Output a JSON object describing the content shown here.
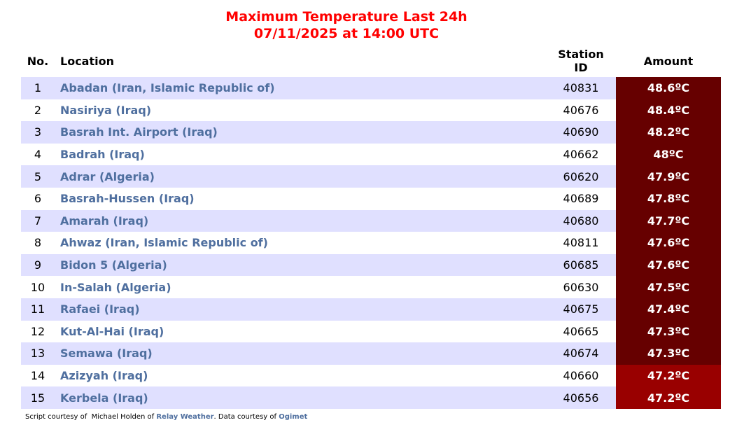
{
  "title": {
    "line1": "Maximum Temperature Last 24h",
    "line2": "07/11/2025 at 14:00 UTC"
  },
  "headers": {
    "no": "No.",
    "location": "Location",
    "station_line1": "Station",
    "station_line2": "ID",
    "amount": "Amount"
  },
  "colors": {
    "row_alt": "#e0e0ff",
    "amount_dark": "#660000",
    "amount_light": "#990000",
    "link": "#4f6f9f",
    "title": "#ff0000"
  },
  "rows": [
    {
      "no": "1",
      "location": "Abadan (Iran, Islamic Republic of)",
      "station": "40831",
      "amount": "48.6ºC",
      "color": "#660000"
    },
    {
      "no": "2",
      "location": "Nasiriya (Iraq)",
      "station": "40676",
      "amount": "48.4ºC",
      "color": "#660000"
    },
    {
      "no": "3",
      "location": "Basrah Int. Airport (Iraq)",
      "station": "40690",
      "amount": "48.2ºC",
      "color": "#660000"
    },
    {
      "no": "4",
      "location": "Badrah (Iraq)",
      "station": "40662",
      "amount": "48ºC",
      "color": "#660000"
    },
    {
      "no": "5",
      "location": "Adrar (Algeria)",
      "station": "60620",
      "amount": "47.9ºC",
      "color": "#660000"
    },
    {
      "no": "6",
      "location": "Basrah-Hussen (Iraq)",
      "station": "40689",
      "amount": "47.8ºC",
      "color": "#660000"
    },
    {
      "no": "7",
      "location": "Amarah (Iraq)",
      "station": "40680",
      "amount": "47.7ºC",
      "color": "#660000"
    },
    {
      "no": "8",
      "location": "Ahwaz (Iran, Islamic Republic of)",
      "station": "40811",
      "amount": "47.6ºC",
      "color": "#660000"
    },
    {
      "no": "9",
      "location": "Bidon 5 (Algeria)",
      "station": "60685",
      "amount": "47.6ºC",
      "color": "#660000"
    },
    {
      "no": "10",
      "location": "In-Salah (Algeria)",
      "station": "60630",
      "amount": "47.5ºC",
      "color": "#660000"
    },
    {
      "no": "11",
      "location": "Rafaei (Iraq)",
      "station": "40675",
      "amount": "47.4ºC",
      "color": "#660000"
    },
    {
      "no": "12",
      "location": "Kut-Al-Hai (Iraq)",
      "station": "40665",
      "amount": "47.3ºC",
      "color": "#660000"
    },
    {
      "no": "13",
      "location": "Semawa (Iraq)",
      "station": "40674",
      "amount": "47.3ºC",
      "color": "#660000"
    },
    {
      "no": "14",
      "location": "Azizyah (Iraq)",
      "station": "40660",
      "amount": "47.2ºC",
      "color": "#990000"
    },
    {
      "no": "15",
      "location": "Kerbela (Iraq)",
      "station": "40656",
      "amount": "47.2ºC",
      "color": "#990000"
    }
  ],
  "footer": {
    "prefix": "Script courtesy of  Michael Holden of ",
    "relay": "Relay Weather",
    "middle": ". Data courtesy of ",
    "ogimet": "Ogimet"
  }
}
